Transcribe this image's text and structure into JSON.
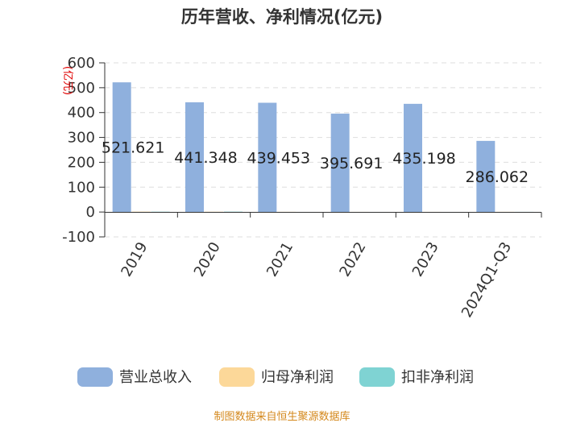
{
  "chart_data": {
    "type": "bar",
    "title": "历年营收、净利情况(亿元)",
    "ylabel": "(亿元)",
    "ylim": [
      -100,
      600
    ],
    "yticks": [
      600,
      500,
      400,
      300,
      200,
      100,
      0,
      -100
    ],
    "categories": [
      "2019",
      "2020",
      "2021",
      "2022",
      "2023",
      "2024Q1-Q3"
    ],
    "series": [
      {
        "name": "营业总收入",
        "color": "#8fb0dd",
        "values": [
          521.621,
          441.348,
          439.453,
          395.691,
          435.198,
          286.062
        ]
      },
      {
        "name": "归母净利润",
        "color": "#fcd899",
        "values": [
          1.5,
          1.2,
          0.8,
          0.6,
          0.6,
          0.8
        ]
      },
      {
        "name": "扣非净利润",
        "color": "#7fd3d3",
        "values": [
          1.3,
          1.5,
          0.4,
          0.4,
          0.4,
          0.7
        ]
      }
    ],
    "data_labels": [
      "521.621",
      "441.348",
      "439.453",
      "395.691",
      "435.198",
      "286.062"
    ],
    "grid": true,
    "legend_position": "bottom"
  },
  "source": "制图数据来自恒生聚源数据库"
}
